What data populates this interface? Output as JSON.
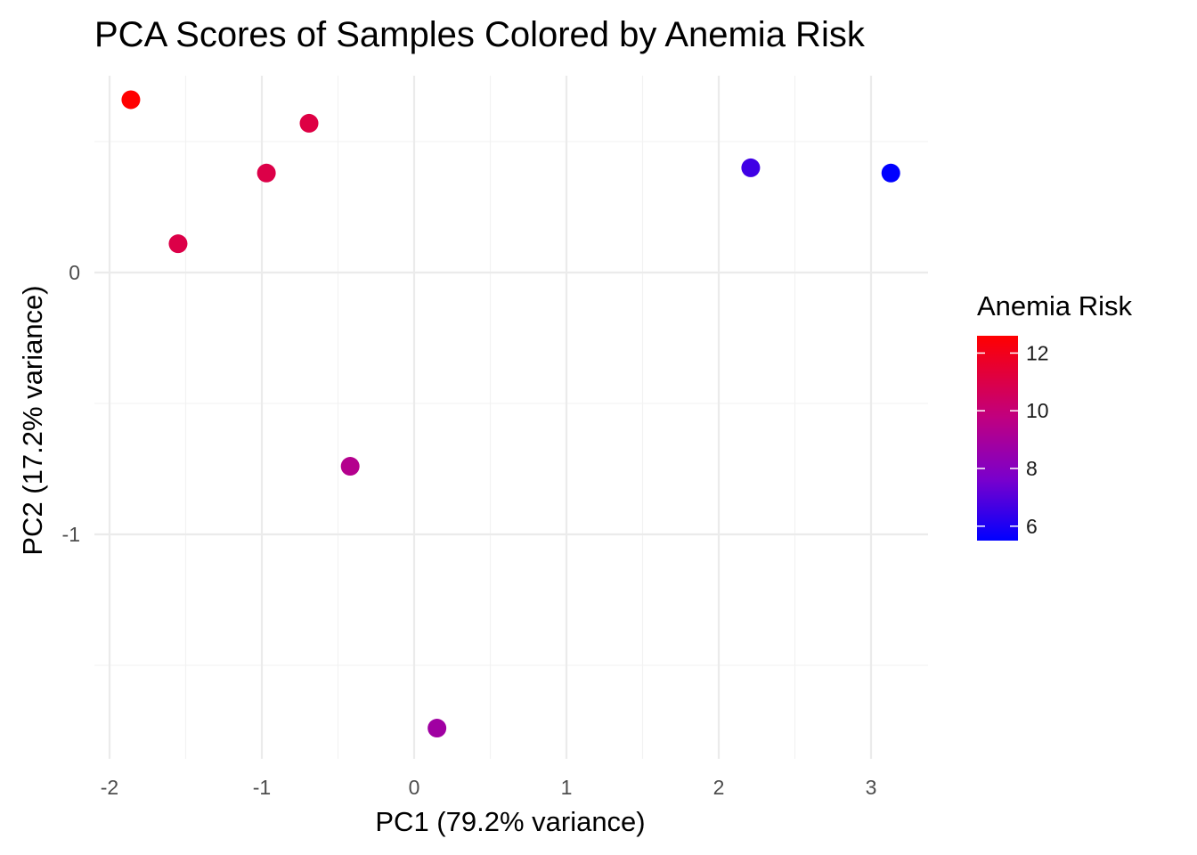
{
  "chart_data": {
    "type": "scatter",
    "title": "PCA Scores of Samples Colored by Anemia Risk",
    "xlabel": "PC1 (79.2% variance)",
    "ylabel": "PC2 (17.2% variance)",
    "xlim": [
      -2.0,
      3.4
    ],
    "ylim": [
      -1.85,
      0.74
    ],
    "x_ticks": [
      -2,
      -1,
      0,
      1,
      2,
      3
    ],
    "x_tick_labels": [
      "-2",
      "-1",
      "0",
      "1",
      "2",
      "3"
    ],
    "y_ticks": [
      0,
      -1
    ],
    "y_tick_labels": [
      "0",
      "-1"
    ],
    "grid": true,
    "legend": {
      "title": "Anemia Risk",
      "placement": "right",
      "type": "continuous-colorbar",
      "range": [
        5.5,
        12.6
      ],
      "ticks": [
        12,
        10,
        8,
        6
      ],
      "tick_labels": [
        "12",
        "10",
        "8",
        "6"
      ],
      "color_low": "#0000ff",
      "color_high": "#ff0000"
    },
    "points": [
      {
        "x": -1.86,
        "y": 0.66,
        "risk": 12.6
      },
      {
        "x": -0.69,
        "y": 0.57,
        "risk": 11.1
      },
      {
        "x": -0.97,
        "y": 0.38,
        "risk": 11.0
      },
      {
        "x": -1.55,
        "y": 0.11,
        "risk": 11.0
      },
      {
        "x": 2.21,
        "y": 0.4,
        "risk": 6.6
      },
      {
        "x": 3.13,
        "y": 0.38,
        "risk": 5.5
      },
      {
        "x": -0.42,
        "y": -0.74,
        "risk": 9.4
      },
      {
        "x": 0.15,
        "y": -1.74,
        "risk": 8.8
      }
    ]
  }
}
